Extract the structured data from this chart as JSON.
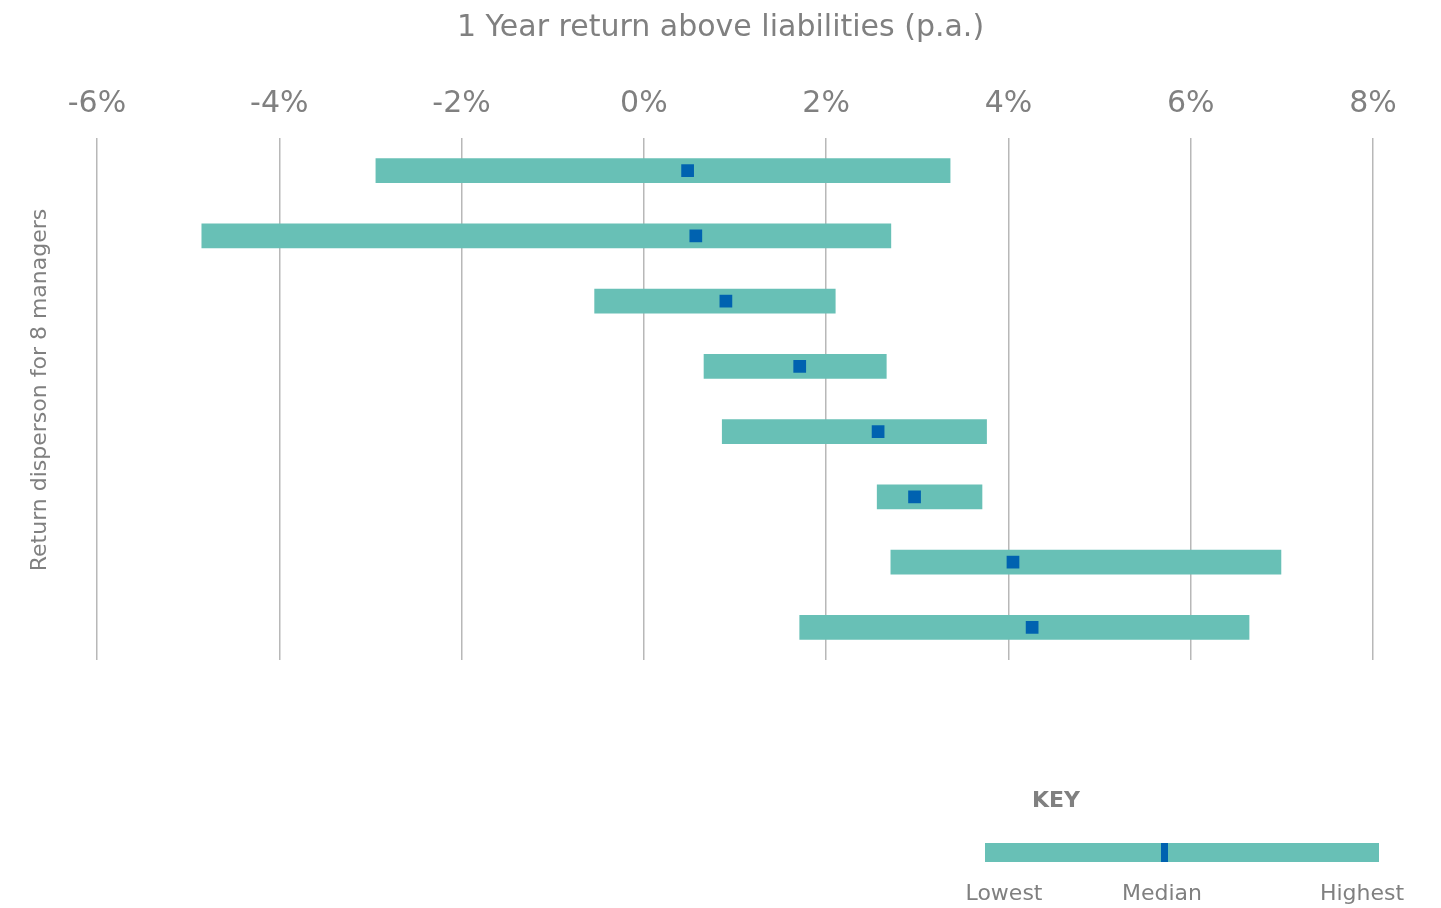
{
  "chart_data": {
    "type": "bar",
    "orientation": "horizontal",
    "title": "1 Year return above liabilities (p.a.)",
    "ylabel": "Return disperson for 8 managers",
    "categories": [
      null,
      null,
      null,
      null,
      null,
      null,
      null,
      null
    ],
    "series": [
      {
        "color": "#68c0b6",
        "base": [
          -2.94,
          -4.85,
          -0.54,
          0.66,
          0.86,
          2.56,
          2.71,
          1.71
        ],
        "values": [
          6.3,
          7.56,
          2.64,
          2.0,
          2.9,
          1.15,
          4.28,
          4.93
        ]
      },
      {
        "type": "scatter",
        "marker": "square",
        "color": "#0062b0",
        "values": [
          0.48,
          0.57,
          0.9,
          1.71,
          2.57,
          2.97,
          4.05,
          4.26
        ]
      }
    ],
    "xlim": [
      -6,
      8
    ],
    "xticks": [
      {
        "value": -6,
        "label": "-6%"
      },
      {
        "value": -4,
        "label": "-4%"
      },
      {
        "value": -2,
        "label": "-2%"
      },
      {
        "value": 0,
        "label": "0%"
      },
      {
        "value": 2,
        "label": "2%"
      },
      {
        "value": 4,
        "label": "4%"
      },
      {
        "value": 6,
        "label": "6%"
      },
      {
        "value": 8,
        "label": "8%"
      }
    ],
    "grid": "x",
    "legend": false,
    "annotations": [
      "KEY",
      "Lowest",
      "Median",
      "Highest"
    ]
  }
}
